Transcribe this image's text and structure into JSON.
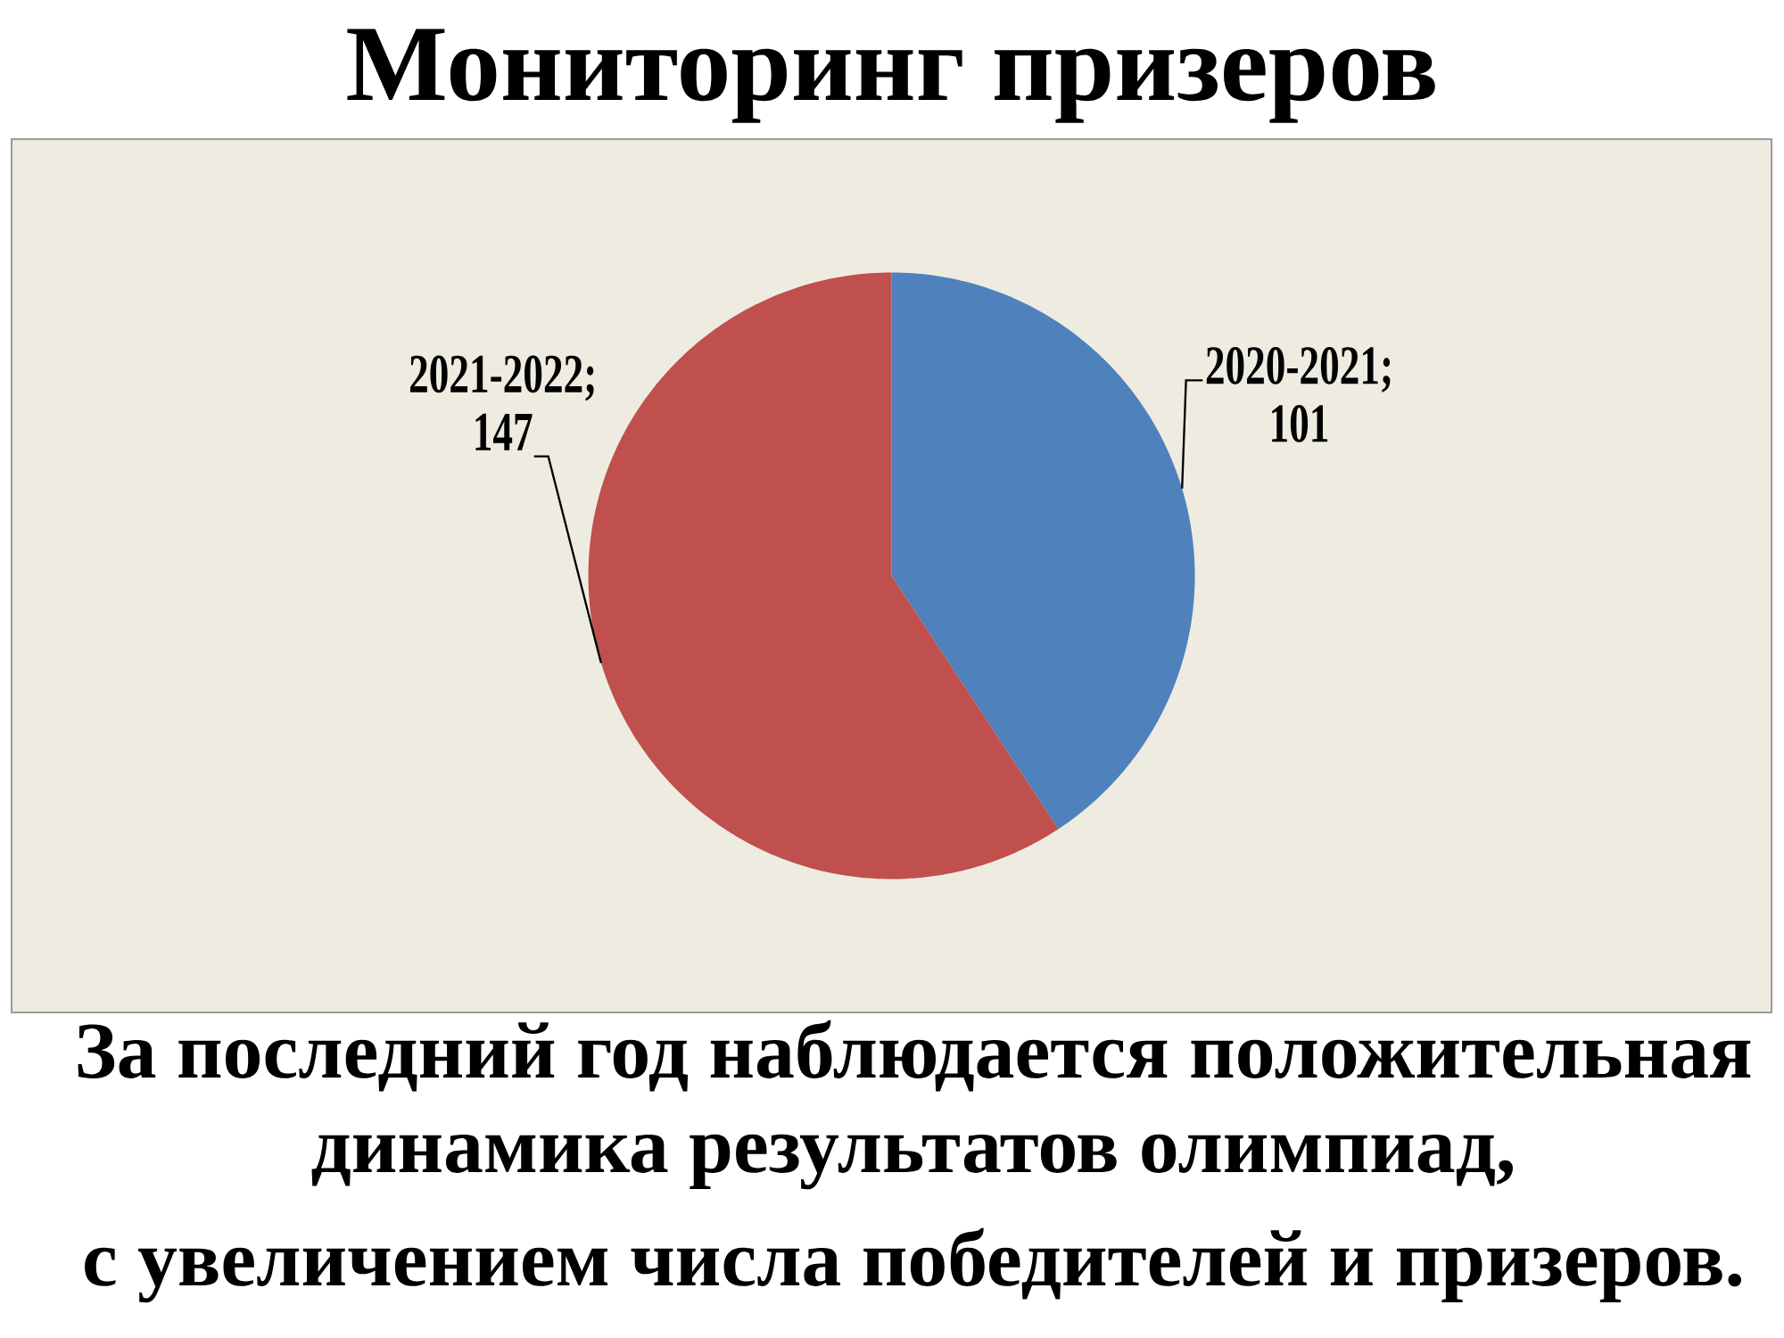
{
  "chart_data": {
    "type": "pie",
    "title": "Мониторинг призеров",
    "categories": [
      null,
      null
    ],
    "values": [
      101,
      147
    ],
    "colors": [
      "#4f81bd",
      "#c0504d"
    ],
    "value_labels": [
      "2020-2021; 101",
      "2021-2022; 147"
    ],
    "annotations": [
      "За последний год наблюдается положительная динамика результатов олимпиад,",
      "с увеличением числа победителей и призеров."
    ]
  }
}
